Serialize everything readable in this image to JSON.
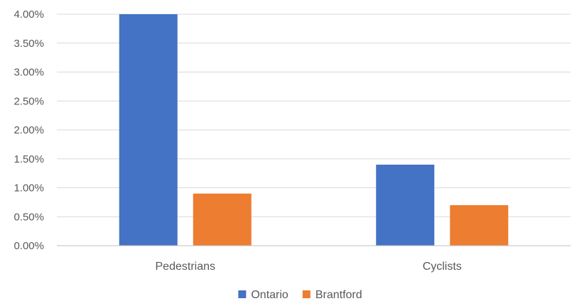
{
  "chart_data": {
    "type": "bar",
    "title": "",
    "xlabel": "",
    "ylabel": "",
    "categories": [
      "Pedestrians",
      "Cyclists"
    ],
    "series": [
      {
        "name": "Ontario",
        "color": "#4472c4",
        "values": [
          4.0,
          1.4
        ]
      },
      {
        "name": "Brantford",
        "color": "#ed7d31",
        "values": [
          0.9,
          0.7
        ]
      }
    ],
    "ylim": [
      0,
      4.0
    ],
    "yticks": [
      0,
      0.5,
      1.0,
      1.5,
      2.0,
      2.5,
      3.0,
      3.5,
      4.0
    ],
    "ytick_labels": [
      "0.00%",
      "0.50%",
      "1.00%",
      "1.50%",
      "2.00%",
      "2.50%",
      "3.00%",
      "3.50%",
      "4.00%"
    ],
    "grid": true,
    "legend_position": "bottom"
  }
}
